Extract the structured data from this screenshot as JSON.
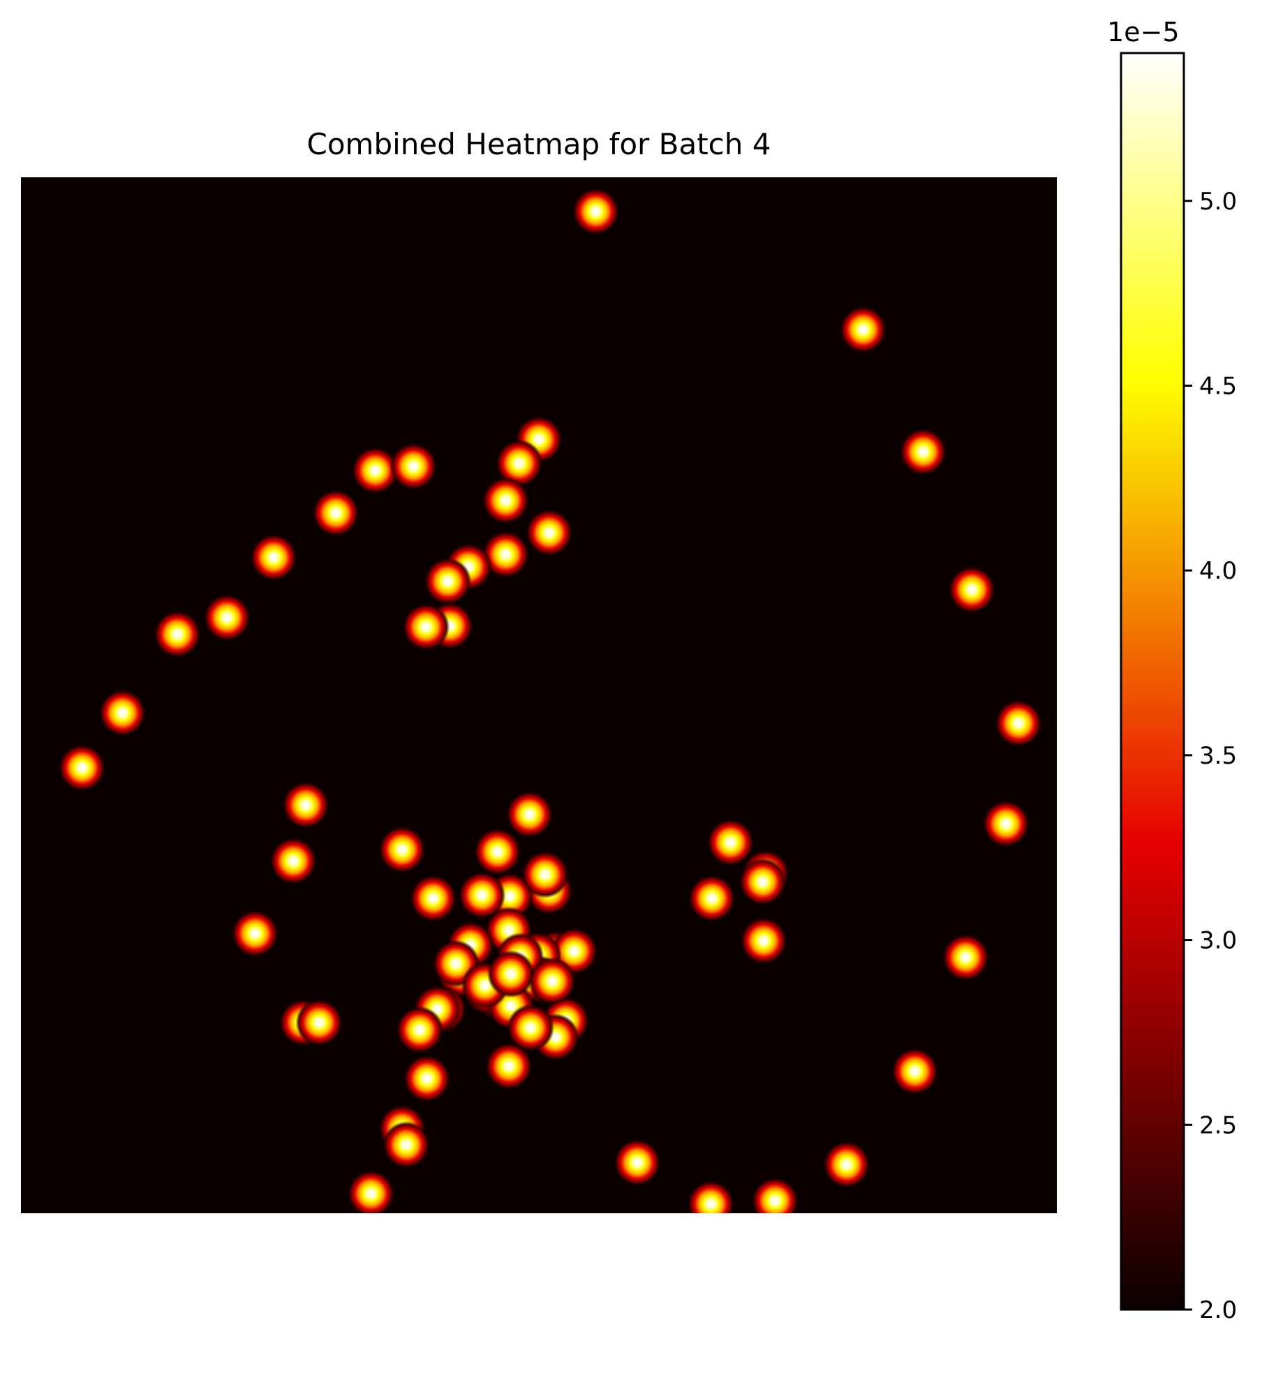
{
  "chart_data": {
    "type": "heatmap",
    "title": "Combined Heatmap for Batch 4",
    "axes_visible": false,
    "colormap": "hot",
    "colormap_stops": [
      "#0a0000",
      "#e60000",
      "#ffff00",
      "#ffffff"
    ],
    "background_value": 2.0,
    "peak_value": 5.4,
    "colorbar": {
      "range": [
        2.0,
        5.4
      ],
      "ticks": [
        2.0,
        2.5,
        3.0,
        3.5,
        4.0,
        4.5,
        5.0
      ],
      "tick_labels": [
        "2.0",
        "2.5",
        "3.0",
        "3.5",
        "4.0",
        "4.5",
        "5.0"
      ],
      "offset_label": "1e−5"
    },
    "grid_size": [
      1000,
      1000
    ],
    "hotspots": [
      [
        813,
        147
      ],
      [
        871,
        265
      ],
      [
        918,
        398
      ],
      [
        963,
        527
      ],
      [
        951,
        624
      ],
      [
        912,
        753
      ],
      [
        863,
        863
      ],
      [
        797,
        953
      ],
      [
        728,
        988
      ],
      [
        666,
        991
      ],
      [
        595,
        951
      ],
      [
        555,
        33
      ],
      [
        500,
        253
      ],
      [
        481,
        276
      ],
      [
        468,
        312
      ],
      [
        510,
        343
      ],
      [
        468,
        364
      ],
      [
        432,
        376
      ],
      [
        412,
        390
      ],
      [
        414,
        433
      ],
      [
        391,
        434
      ],
      [
        342,
        283
      ],
      [
        379,
        279
      ],
      [
        304,
        324
      ],
      [
        244,
        367
      ],
      [
        199,
        425
      ],
      [
        151,
        441
      ],
      [
        98,
        517
      ],
      [
        59,
        570
      ],
      [
        368,
        649
      ],
      [
        685,
        642
      ],
      [
        719,
        672
      ],
      [
        716,
        680
      ],
      [
        717,
        737
      ],
      [
        667,
        696
      ],
      [
        491,
        615
      ],
      [
        510,
        689
      ],
      [
        472,
        694
      ],
      [
        471,
        727
      ],
      [
        434,
        741
      ],
      [
        425,
        769
      ],
      [
        420,
        759
      ],
      [
        516,
        750
      ],
      [
        534,
        747
      ],
      [
        499,
        751
      ],
      [
        501,
        774
      ],
      [
        481,
        778
      ],
      [
        460,
        790
      ],
      [
        450,
        785
      ],
      [
        473,
        800
      ],
      [
        448,
        780
      ],
      [
        407,
        803
      ],
      [
        526,
        814
      ],
      [
        516,
        830
      ],
      [
        492,
        821
      ],
      [
        482,
        752
      ],
      [
        473,
        769
      ],
      [
        471,
        858
      ],
      [
        513,
        776
      ],
      [
        402,
        803
      ],
      [
        385,
        823
      ],
      [
        392,
        870
      ],
      [
        368,
        918
      ],
      [
        372,
        934
      ],
      [
        338,
        981
      ],
      [
        272,
        816
      ],
      [
        288,
        816
      ],
      [
        226,
        730
      ],
      [
        263,
        660
      ],
      [
        275,
        606
      ],
      [
        398,
        696
      ],
      [
        506,
        673
      ],
      [
        460,
        651
      ],
      [
        445,
        693
      ]
    ]
  }
}
